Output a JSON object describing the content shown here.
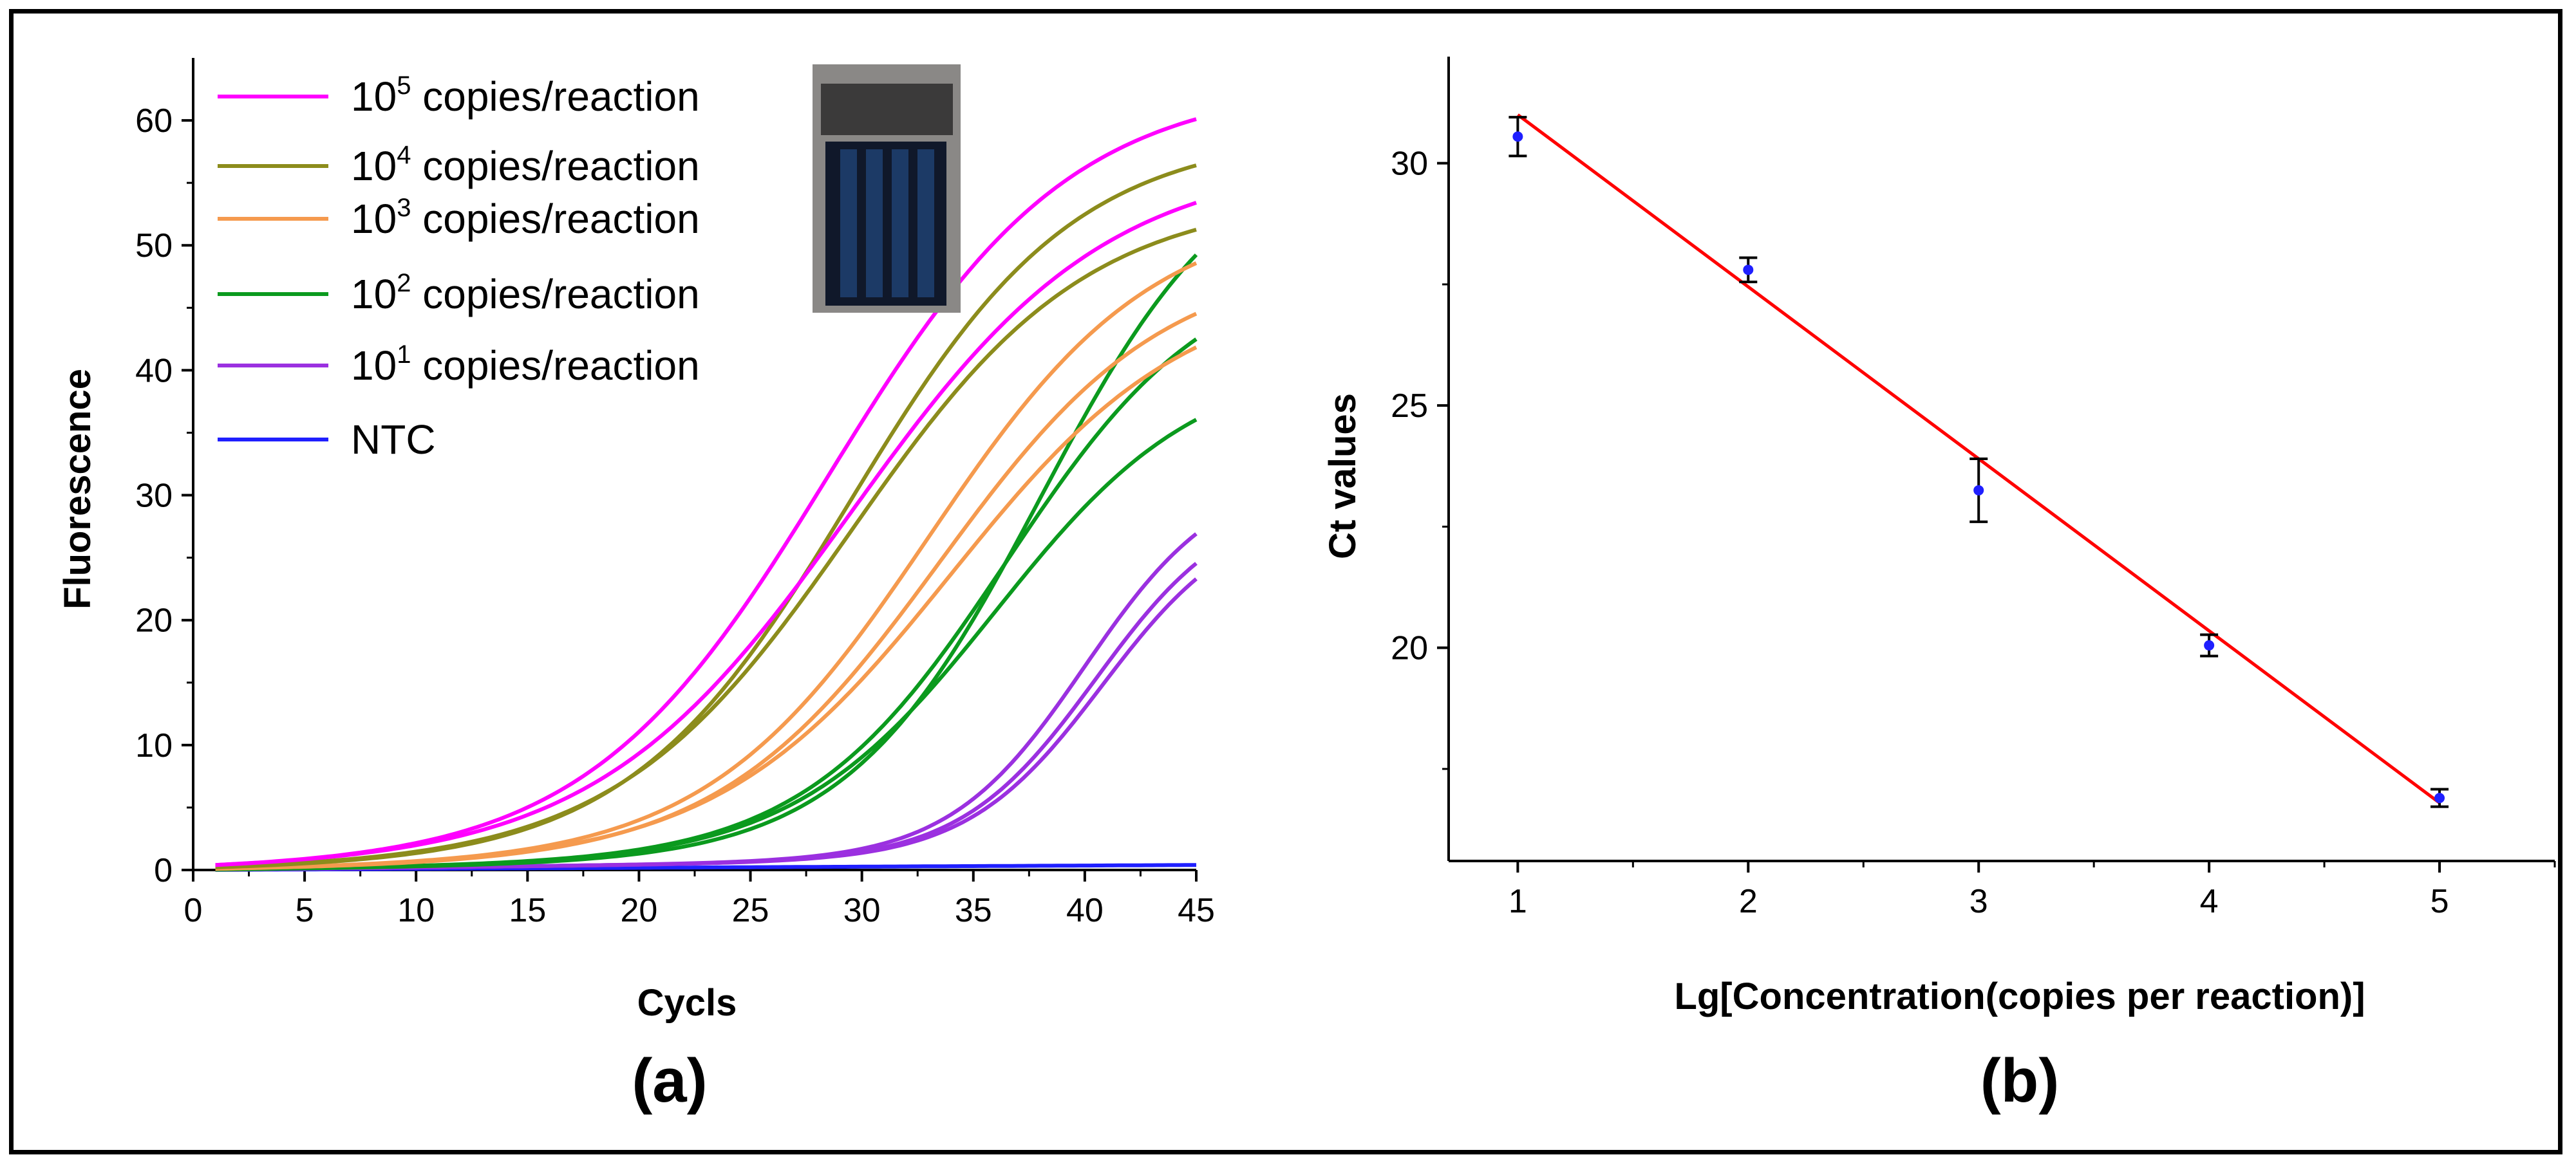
{
  "chart_data": [
    {
      "type": "line",
      "panel_label": "(a)",
      "xlabel": "Cycls",
      "ylabel": "Fluorescence",
      "xlim": [
        0,
        45
      ],
      "ylim": [
        0,
        65
      ],
      "xticks": [
        0,
        5,
        10,
        15,
        20,
        25,
        30,
        35,
        40,
        45
      ],
      "yticks": [
        0,
        10,
        20,
        30,
        40,
        50,
        60
      ],
      "legend_position": "top-left",
      "inset": "photo-of-reaction-chip",
      "series": [
        {
          "name_base": "10",
          "name_exp": "5",
          "name_rest": " copies/reaction",
          "color": "#ff00ff",
          "curves": [
            {
              "max": 62,
              "mid": 28.5,
              "k": 0.185
            },
            {
              "max": 56,
              "mid": 29.5,
              "k": 0.175
            }
          ]
        },
        {
          "name_base": "10",
          "name_exp": "4",
          "name_rest": " copies/reaction",
          "color": "#8c8c1c",
          "curves": [
            {
              "max": 58,
              "mid": 29.5,
              "k": 0.2
            },
            {
              "max": 53,
              "mid": 29.5,
              "k": 0.19
            }
          ]
        },
        {
          "name_base": "10",
          "name_exp": "3",
          "name_rest": " copies/reaction",
          "color": "#f59a4e",
          "curves": [
            {
              "max": 52,
              "mid": 33,
              "k": 0.2
            },
            {
              "max": 48,
              "mid": 33.5,
              "k": 0.2
            },
            {
              "max": 46,
              "mid": 34,
              "k": 0.19
            }
          ]
        },
        {
          "name_base": "10",
          "name_exp": "2",
          "name_rest": " copies/reaction",
          "color": "#0b9a1e",
          "curves": [
            {
              "max": 58,
              "mid": 38,
              "k": 0.23
            },
            {
              "max": 48,
              "mid": 36.5,
              "k": 0.22
            },
            {
              "max": 40,
              "mid": 36,
              "k": 0.22
            }
          ]
        },
        {
          "name_base": "10",
          "name_exp": "1",
          "name_rest": " copies/reaction",
          "color": "#9b30e0",
          "curves": [
            {
              "max": 31,
              "mid": 40,
              "k": 0.33
            },
            {
              "max": 29,
              "mid": 40.5,
              "k": 0.33
            },
            {
              "max": 28,
              "mid": 40.8,
              "k": 0.33
            }
          ]
        },
        {
          "name_base": "NTC",
          "name_exp": "",
          "name_rest": "",
          "color": "#1f1fff",
          "curves": [
            {
              "max": 0.4,
              "mid": 0,
              "k": 0
            }
          ]
        }
      ]
    },
    {
      "type": "scatter",
      "panel_label": "(b)",
      "xlabel": "Lg[Concentration(copies per reaction)]",
      "ylabel": "Ct values",
      "xlim": [
        0.7,
        5.5
      ],
      "ylim": [
        15.6,
        32.2
      ],
      "xticks": [
        1,
        2,
        3,
        4,
        5
      ],
      "yticks": [
        20,
        25,
        30
      ],
      "points": [
        {
          "x": 1,
          "y": 30.55,
          "err": 0.4
        },
        {
          "x": 2,
          "y": 27.8,
          "err": 0.25
        },
        {
          "x": 3,
          "y": 23.25,
          "err": 0.65
        },
        {
          "x": 4,
          "y": 20.05,
          "err": 0.22
        },
        {
          "x": 5,
          "y": 16.9,
          "err": 0.18
        }
      ],
      "fit_line": {
        "x1": 1,
        "y1": 31.0,
        "x2": 5,
        "y2": 16.8
      },
      "point_color": "#1f1fff",
      "fit_color": "#ff0000",
      "errorbar_color": "#000000"
    }
  ]
}
